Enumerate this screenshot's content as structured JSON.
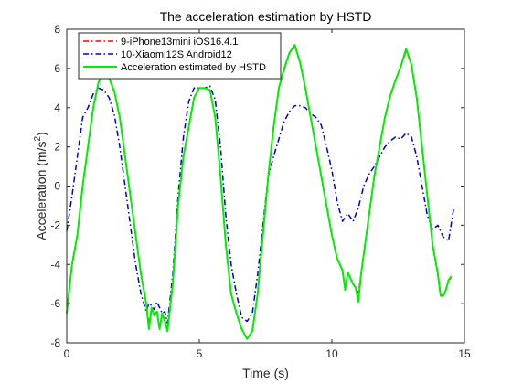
{
  "chart_data": {
    "type": "line",
    "title": "The acceleration estimation by HSTD",
    "xlabel": "Time (s)",
    "ylabel_main": "Acceleration (m/s",
    "ylabel_sup": "2",
    "ylabel_close": ")",
    "xlim": [
      0,
      15
    ],
    "ylim": [
      -8,
      8
    ],
    "xticks": [
      0,
      5,
      10,
      15
    ],
    "yticks": [
      -8,
      -6,
      -4,
      -2,
      0,
      2,
      4,
      6,
      8
    ],
    "grid": false,
    "legend_position": "top-left",
    "series": [
      {
        "name": "9-iPhone13mini iOS16.4.1",
        "color": "#ff0000",
        "style": "dash-dot",
        "x": [
          0,
          0.2,
          0.4,
          0.6,
          0.8,
          1.0,
          1.2,
          1.4,
          1.6,
          1.8,
          2.0,
          2.2,
          2.4,
          2.6,
          2.8,
          3.0,
          3.1,
          3.2,
          3.3,
          3.4,
          3.5,
          3.6,
          3.7,
          3.8,
          4.0,
          4.2,
          4.4,
          4.6,
          4.8,
          5.0,
          5.2,
          5.4,
          5.6,
          5.8,
          6.0,
          6.2,
          6.4,
          6.6,
          6.8,
          7.0,
          7.2,
          7.4,
          7.6,
          7.8,
          8.0,
          8.2,
          8.4,
          8.6,
          8.8,
          9.0,
          9.2,
          9.4,
          9.6,
          9.8,
          10.0,
          10.2,
          10.4,
          10.5,
          10.6,
          10.7,
          10.8,
          10.9,
          11.0,
          11.1,
          11.2,
          11.4,
          11.6,
          11.8,
          12.0,
          12.2,
          12.4,
          12.6,
          12.8,
          13.0,
          13.2,
          13.4,
          13.6,
          13.8,
          14.0,
          14.1,
          14.2,
          14.3,
          14.4,
          14.5
        ],
        "y": [
          -6.4,
          -4.0,
          -2.5,
          0.0,
          2.0,
          4.0,
          5.3,
          5.8,
          5.5,
          4.8,
          3.5,
          1.5,
          -0.5,
          -2.5,
          -4.5,
          -6.0,
          -7.1,
          -6.2,
          -6.6,
          -6.4,
          -7.2,
          -6.5,
          -6.9,
          -7.3,
          -5.0,
          -1.0,
          1.5,
          3.0,
          4.5,
          5.0,
          5.0,
          4.9,
          3.5,
          0.5,
          -3.0,
          -5.5,
          -6.5,
          -7.3,
          -7.8,
          -7.4,
          -5.5,
          -2.5,
          0.5,
          3.0,
          5.0,
          5.9,
          6.8,
          7.1,
          6.3,
          5.0,
          3.5,
          2.0,
          0.5,
          -1.0,
          -2.5,
          -3.7,
          -4.3,
          -5.2,
          -4.4,
          -4.7,
          -5.0,
          -5.2,
          -5.5,
          -4.5,
          -3.5,
          -1.5,
          0.5,
          2.0,
          3.5,
          4.6,
          5.4,
          6.1,
          6.9,
          6.2,
          4.5,
          2.0,
          -0.5,
          -3.0,
          -4.5,
          -5.5,
          -5.6,
          -5.3,
          -4.8,
          -4.7
        ]
      },
      {
        "name": "10-Xiaomi12S Android12",
        "color": "#0000cc",
        "style": "dash-dot",
        "x": [
          0,
          0.2,
          0.4,
          0.6,
          0.8,
          1.0,
          1.2,
          1.4,
          1.6,
          1.8,
          2.0,
          2.2,
          2.4,
          2.6,
          2.8,
          3.0,
          3.1,
          3.2,
          3.3,
          3.4,
          3.5,
          3.6,
          3.7,
          3.8,
          4.0,
          4.2,
          4.4,
          4.6,
          4.8,
          5.0,
          5.2,
          5.4,
          5.6,
          5.8,
          6.0,
          6.2,
          6.4,
          6.6,
          6.8,
          7.0,
          7.2,
          7.4,
          7.6,
          7.8,
          8.0,
          8.2,
          8.4,
          8.6,
          8.8,
          9.0,
          9.2,
          9.4,
          9.6,
          9.8,
          10.0,
          10.2,
          10.4,
          10.6,
          10.8,
          11.0,
          11.2,
          11.4,
          11.6,
          11.8,
          12.0,
          12.2,
          12.4,
          12.6,
          12.8,
          13.0,
          13.2,
          13.4,
          13.6,
          13.8,
          14.0,
          14.2,
          14.4,
          14.6
        ],
        "y": [
          -2.3,
          -0.5,
          1.5,
          3.5,
          4.0,
          4.7,
          5.0,
          4.9,
          4.5,
          3.6,
          2.0,
          0.0,
          -2.0,
          -4.0,
          -5.5,
          -6.4,
          -6.0,
          -6.1,
          -6.3,
          -5.9,
          -6.2,
          -6.5,
          -6.4,
          -7.0,
          -4.5,
          -0.5,
          2.5,
          4.3,
          5.0,
          5.0,
          5.0,
          5.1,
          4.4,
          2.0,
          -1.5,
          -4.0,
          -5.5,
          -6.7,
          -6.9,
          -6.5,
          -4.5,
          -2.0,
          0.5,
          1.5,
          2.4,
          3.3,
          3.8,
          4.1,
          4.1,
          4.0,
          3.7,
          3.5,
          3.1,
          2.0,
          0.8,
          -0.8,
          -1.8,
          -1.4,
          -1.8,
          -1.1,
          0.0,
          0.6,
          1.0,
          1.5,
          2.0,
          2.3,
          2.5,
          2.4,
          2.7,
          2.5,
          1.5,
          0.0,
          -1.5,
          -2.2,
          -2.0,
          -2.6,
          -2.8,
          -1.1
        ]
      },
      {
        "name": "Acceleration estimated by HSTD",
        "color": "#00ee00",
        "style": "solid",
        "x": [
          0,
          0.2,
          0.4,
          0.6,
          0.8,
          1.0,
          1.2,
          1.4,
          1.6,
          1.8,
          2.0,
          2.2,
          2.4,
          2.6,
          2.8,
          3.0,
          3.1,
          3.2,
          3.3,
          3.4,
          3.5,
          3.6,
          3.7,
          3.8,
          4.0,
          4.2,
          4.4,
          4.6,
          4.8,
          5.0,
          5.2,
          5.4,
          5.6,
          5.8,
          6.0,
          6.2,
          6.4,
          6.6,
          6.8,
          7.0,
          7.2,
          7.4,
          7.6,
          7.8,
          8.0,
          8.2,
          8.4,
          8.6,
          8.8,
          9.0,
          9.2,
          9.4,
          9.6,
          9.8,
          10.0,
          10.2,
          10.4,
          10.5,
          10.6,
          10.7,
          10.8,
          10.9,
          11.0,
          11.1,
          11.2,
          11.4,
          11.6,
          11.8,
          12.0,
          12.2,
          12.4,
          12.6,
          12.8,
          13.0,
          13.2,
          13.4,
          13.6,
          13.8,
          14.0,
          14.1,
          14.2,
          14.3,
          14.4,
          14.5
        ],
        "y": [
          -6.5,
          -4.0,
          -2.5,
          0.0,
          2.0,
          4.0,
          5.3,
          5.9,
          5.5,
          4.8,
          3.5,
          1.5,
          -0.5,
          -2.5,
          -4.5,
          -6.0,
          -7.3,
          -6.2,
          -6.6,
          -6.4,
          -7.3,
          -6.5,
          -6.9,
          -7.4,
          -5.0,
          -1.0,
          1.5,
          3.0,
          4.5,
          5.0,
          5.0,
          4.9,
          3.5,
          0.5,
          -3.0,
          -5.5,
          -6.5,
          -7.3,
          -7.8,
          -7.4,
          -5.5,
          -2.5,
          0.5,
          3.0,
          5.0,
          6.0,
          6.8,
          7.2,
          6.3,
          5.0,
          3.5,
          2.0,
          0.5,
          -1.0,
          -2.5,
          -3.7,
          -4.3,
          -5.3,
          -4.4,
          -4.7,
          -5.0,
          -5.2,
          -5.9,
          -4.5,
          -3.5,
          -1.5,
          0.5,
          2.0,
          3.5,
          4.6,
          5.4,
          6.1,
          7.0,
          6.2,
          4.5,
          2.0,
          -0.5,
          -3.0,
          -4.5,
          -5.6,
          -5.6,
          -5.3,
          -4.8,
          -4.6
        ]
      }
    ]
  }
}
